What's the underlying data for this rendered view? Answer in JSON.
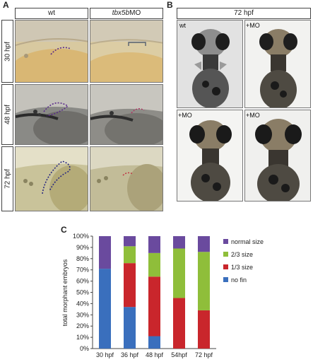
{
  "panel_a": {
    "letter": "A",
    "col_wt": "wt",
    "col_mo_gene": "tbx5b",
    "col_mo_suffix": "MO",
    "rows": [
      "30 hpf",
      "48 hpf",
      "72 hpf"
    ]
  },
  "panel_b": {
    "letter": "B",
    "header": "72 hpf",
    "labels": [
      "wt",
      "+MO",
      "+MO",
      "+MO"
    ]
  },
  "panel_c": {
    "letter": "C"
  },
  "colors": {
    "no_fin": "#3a6fbd",
    "third": "#c9262c",
    "two_thirds": "#8fbe3a",
    "normal": "#6a4a9e"
  },
  "chart_data": {
    "type": "bar",
    "stacked": true,
    "categories": [
      "30 hpf",
      "36 hpf",
      "48 hpf",
      "54hpf",
      "72 hpf"
    ],
    "series": [
      {
        "name": "no fin",
        "values": [
          71,
          37,
          11,
          0,
          0
        ]
      },
      {
        "name": "1/3 size",
        "values": [
          0,
          39,
          53,
          45,
          34
        ]
      },
      {
        "name": "2/3 size",
        "values": [
          0,
          15,
          21,
          44,
          52
        ]
      },
      {
        "name": "normal size",
        "values": [
          29,
          9,
          15,
          11,
          14
        ]
      }
    ],
    "legend_order": [
      "normal size",
      "2/3 size",
      "1/3 size",
      "no fin"
    ],
    "ylabel": "total morphant embryos",
    "ylim": [
      0,
      100
    ],
    "yticks": [
      "0%",
      "10%",
      "20%",
      "30%",
      "40%",
      "50%",
      "60%",
      "70%",
      "80%",
      "90%",
      "100%"
    ],
    "legend_position": "right",
    "grid": false
  }
}
